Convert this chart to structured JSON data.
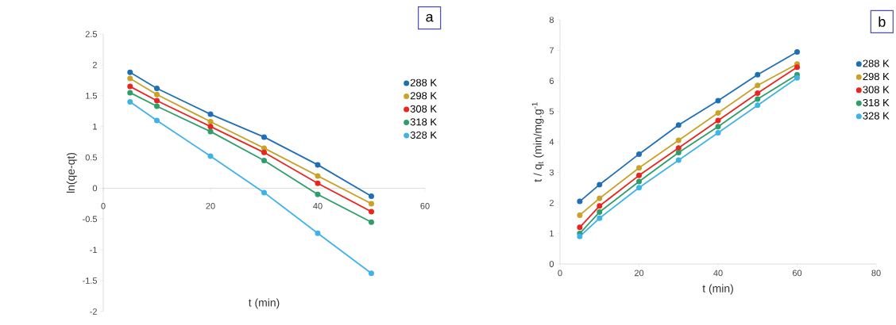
{
  "chart_data": [
    {
      "type": "line",
      "xlabel": "t (min)",
      "ylabel": "ln(qe-qt)",
      "annotations": [
        "a"
      ],
      "marker": "circle",
      "line_style": "solid",
      "legend": "top right",
      "grid": false,
      "x": [
        5,
        10,
        20,
        30,
        40,
        50
      ],
      "xlim": [
        0,
        60
      ],
      "xticks": [
        0,
        20,
        40,
        60
      ],
      "ylim": [
        -2,
        2.5
      ],
      "yticks": [
        -2,
        -1.5,
        -1,
        -0.5,
        0,
        0.5,
        1,
        1.5,
        2,
        2.5
      ],
      "series": [
        {
          "name": "288 K",
          "color": "#1f6fb5",
          "values": [
            1.88,
            1.62,
            1.2,
            0.83,
            0.38,
            -0.13
          ]
        },
        {
          "name": "298 K",
          "color": "#c9a227",
          "values": [
            1.78,
            1.52,
            1.08,
            0.65,
            0.2,
            -0.25
          ]
        },
        {
          "name": "308 K",
          "color": "#e8251f",
          "values": [
            1.65,
            1.42,
            1.0,
            0.58,
            0.08,
            -0.38
          ]
        },
        {
          "name": "318 K",
          "color": "#2e9e6a",
          "values": [
            1.55,
            1.33,
            0.92,
            0.45,
            -0.1,
            -0.55
          ]
        },
        {
          "name": "328 K",
          "color": "#3fb3e8",
          "values": [
            1.4,
            1.1,
            0.52,
            -0.07,
            -0.73,
            -1.38
          ]
        }
      ]
    },
    {
      "type": "line",
      "xlabel": "t (min)",
      "ylabel": "t / q$_{t}$ (min/mg.g$^{-1}$",
      "annotations": [
        "b"
      ],
      "marker": "circle",
      "line_style": "solid",
      "legend": "top right",
      "grid": false,
      "x": [
        5,
        10,
        20,
        30,
        40,
        50,
        60
      ],
      "xlim": [
        0,
        80
      ],
      "xticks": [
        0,
        20,
        40,
        60,
        80
      ],
      "ylim": [
        0,
        8
      ],
      "yticks": [
        0,
        1,
        2,
        3,
        4,
        5,
        6,
        7,
        8
      ],
      "series": [
        {
          "name": "288 K",
          "color": "#1f6fb5",
          "values": [
            2.05,
            2.6,
            3.6,
            4.55,
            5.35,
            6.2,
            6.95
          ]
        },
        {
          "name": "298 K",
          "color": "#c9a227",
          "values": [
            1.6,
            2.15,
            3.15,
            4.05,
            4.95,
            5.85,
            6.55
          ]
        },
        {
          "name": "308 K",
          "color": "#e8251f",
          "values": [
            1.2,
            1.9,
            2.9,
            3.8,
            4.7,
            5.6,
            6.45
          ]
        },
        {
          "name": "318 K",
          "color": "#2e9e6a",
          "values": [
            1.0,
            1.7,
            2.7,
            3.65,
            4.5,
            5.4,
            6.2
          ]
        },
        {
          "name": "328 K",
          "color": "#3fb3e8",
          "values": [
            0.9,
            1.5,
            2.5,
            3.4,
            4.3,
            5.2,
            6.1
          ]
        }
      ]
    }
  ]
}
